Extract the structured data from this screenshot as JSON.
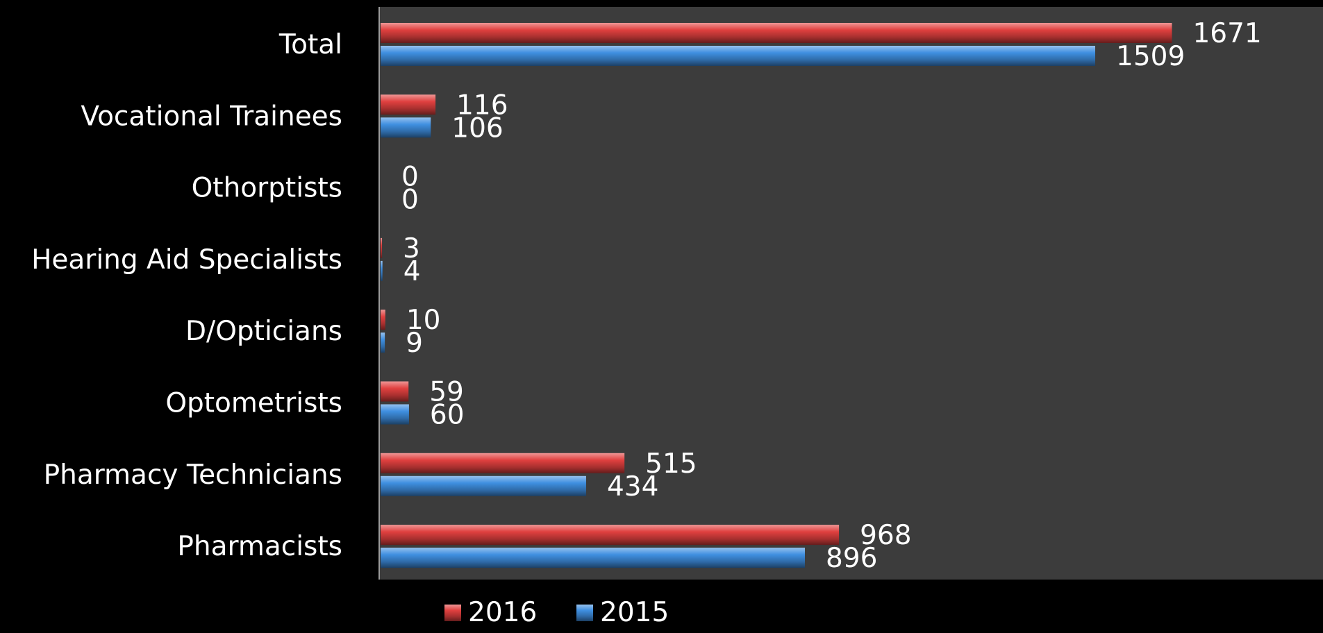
{
  "chart_data": {
    "type": "bar",
    "orientation": "horizontal",
    "categories": [
      "Total",
      "Vocational Trainees",
      "Othorptists",
      "Hearing Aid Specialists",
      "D/Opticians",
      "Optometrists",
      "Pharmacy Technicians",
      "Pharmacists"
    ],
    "series": [
      {
        "name": "2016",
        "color": "#e0403f",
        "values": [
          1671,
          116,
          0,
          3,
          10,
          59,
          515,
          968
        ]
      },
      {
        "name": "2015",
        "color": "#3f8fe0",
        "values": [
          1509,
          106,
          0,
          4,
          9,
          60,
          434,
          896
        ]
      }
    ],
    "xlim": [
      0,
      1990
    ],
    "grid": false,
    "plot_background": "#3c3c3c",
    "page_background": "#000000",
    "legend_position": "bottom"
  }
}
